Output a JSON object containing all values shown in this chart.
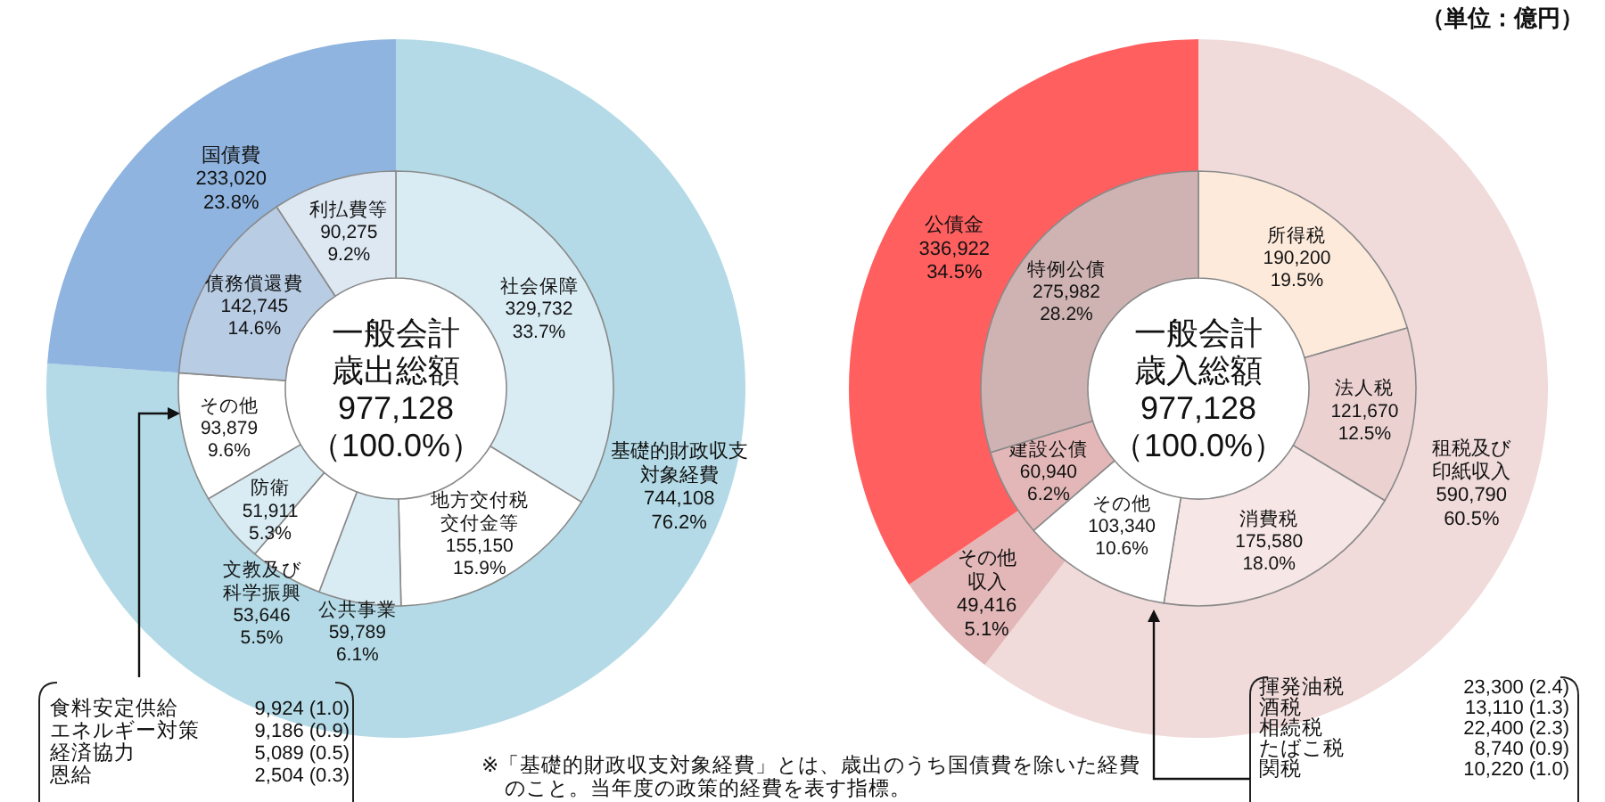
{
  "chart_data": [
    {
      "type": "donut",
      "annotations": [
        "（単位：億円）",
        "※「基礎的財政収支対象経費」とは、歳出のうち国債費を除いた経費のこと。当年度の政策的経費を表す指標。"
      ],
      "categories": [
        "基礎的財政収支対象経費",
        "国債費"
      ],
      "values": [
        744108,
        233020
      ],
      "colors": [
        "#b3dae6",
        "#8fb4e0"
      ],
      "value_labels": [
        "744,108\n76.2%",
        "233,020\n23.8%"
      ]
    },
    {
      "type": "donut",
      "title": "一般会計歳出総額977,128（100.0%）",
      "annotations": [
        "食料安定供給 9,924 (1.0)",
        "エネルギー対策 9,186 (0.9)",
        "経済協力 5,089 (0.5)",
        "恩給 2,504 (0.3)"
      ],
      "categories": [
        "社会保障",
        "地方交付税交付金等",
        "公共事業",
        "文教及び科学振興",
        "防衛",
        "その他",
        "債務償還費",
        "利払費等"
      ],
      "values": [
        329732,
        155150,
        59789,
        53646,
        51911,
        93879,
        142745,
        90275
      ],
      "colors": [
        "#d9ecf4",
        "#ffffff",
        "#d9ecf4",
        "#ffffff",
        "#d9ecf4",
        "#ffffff",
        "#b8cce4",
        "#dde8f2"
      ],
      "value_labels": [
        "329,732\n33.7%",
        "155,150\n15.9%",
        "59,789\n6.1%",
        "53,646\n5.5%",
        "51,911\n5.3%",
        "93,879\n9.6%",
        "142,745\n14.6%",
        "90,275\n9.2%"
      ]
    },
    {
      "type": "donut",
      "categories": [
        "租税及び印紙収入",
        "その他収入",
        "公債金"
      ],
      "values": [
        590790,
        49416,
        336922
      ],
      "colors": [
        "#f0dada",
        "#e3b7b7",
        "#ff5f5f"
      ],
      "value_labels": [
        "590,790\n60.5%",
        "49,416\n5.1%",
        "336,922\n34.5%"
      ]
    },
    {
      "type": "donut",
      "title": "一般会計歳入総額977,128（100.0%）",
      "annotations": [
        "揮発油税 23,300 (2.4)",
        "酒税 13,110 (1.3)",
        "相続税 22,400 (2.3)",
        "たばこ税 8,740 (0.9)",
        "関税 10,220 (1.0)"
      ],
      "categories": [
        "所得税",
        "法人税",
        "消費税",
        "その他",
        "建設公債",
        "特例公債"
      ],
      "values": [
        190200,
        121670,
        175580,
        103340,
        60940,
        275982
      ],
      "colors": [
        "#fdeadb",
        "#ecd1d1",
        "#f7e6e6",
        "#ffffff",
        "#e3b7b7",
        "#cfb3b3"
      ],
      "value_labels": [
        "190,200\n19.5%",
        "121,670\n12.5%",
        "175,580\n18.0%",
        "103,340\n10.6%",
        "60,940\n6.2%",
        "275,982\n28.2%"
      ]
    }
  ]
}
